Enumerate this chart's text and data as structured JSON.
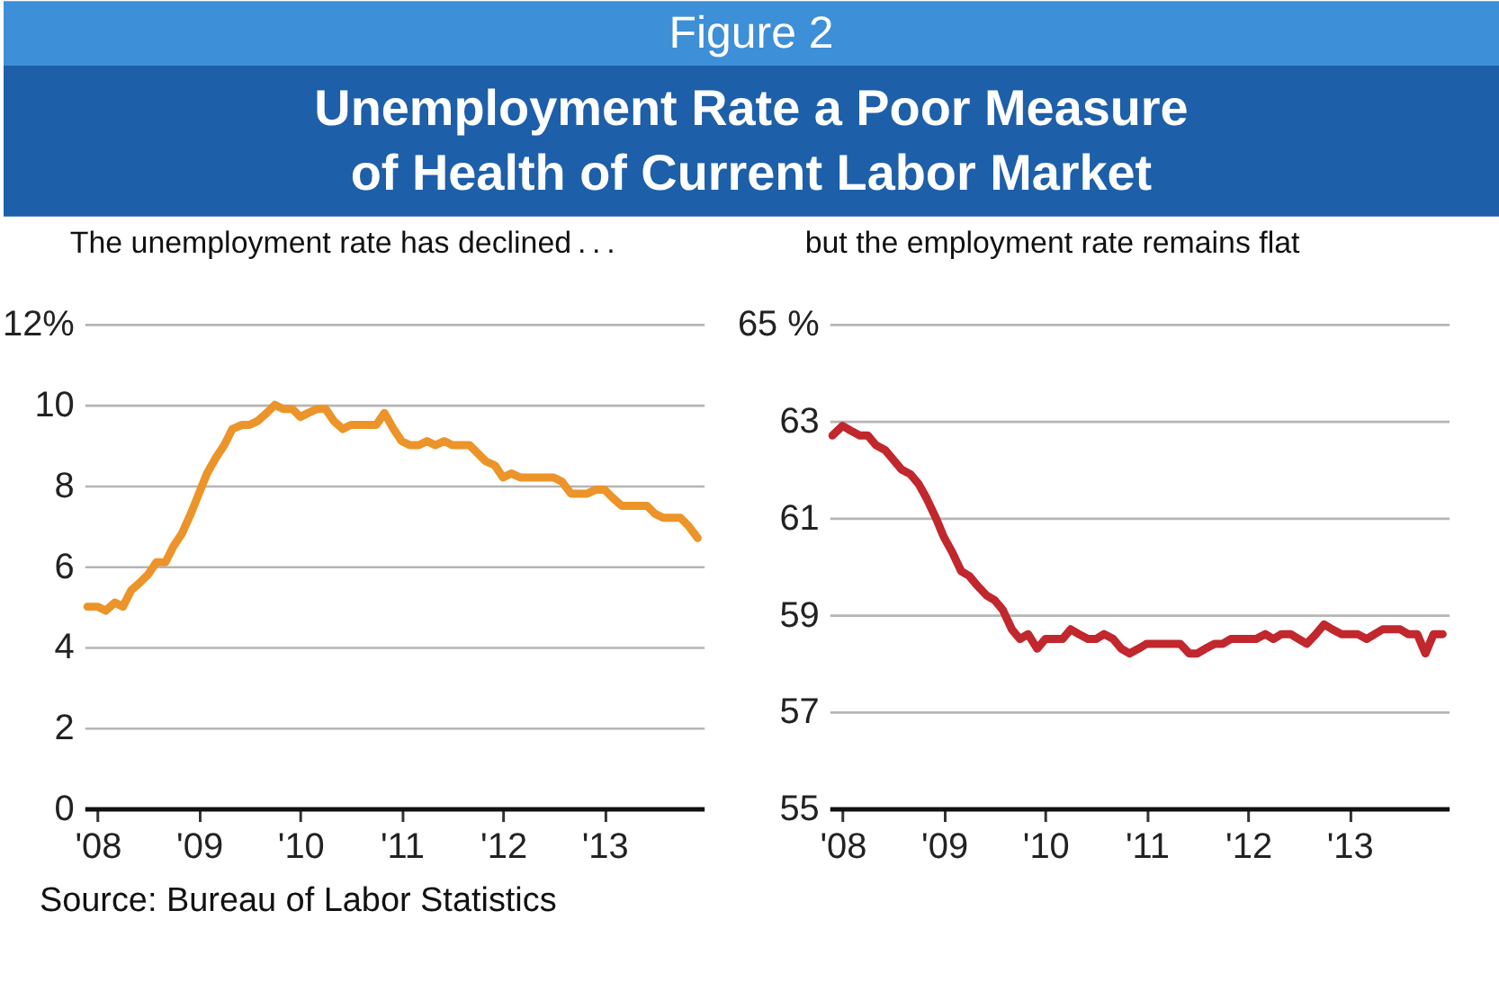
{
  "chart_data": [
    {
      "type": "other",
      "title": "Figure 2",
      "subtitle": "Unemployment Rate a Poor Measure\nof Health of Current Labor Market"
    },
    {
      "type": "line",
      "annotations": [
        "The unemployment rate has declined . . .",
        "Source: Bureau of Labor Statistics"
      ],
      "x": [
        2007.9,
        2008.0,
        2008.08,
        2008.17,
        2008.25,
        2008.33,
        2008.42,
        2008.5,
        2008.58,
        2008.67,
        2008.75,
        2008.83,
        2008.92,
        2009.0,
        2009.08,
        2009.17,
        2009.25,
        2009.33,
        2009.42,
        2009.5,
        2009.58,
        2009.67,
        2009.75,
        2009.83,
        2009.92,
        2010.0,
        2010.08,
        2010.17,
        2010.25,
        2010.33,
        2010.42,
        2010.5,
        2010.58,
        2010.67,
        2010.75,
        2010.83,
        2010.92,
        2011.0,
        2011.08,
        2011.17,
        2011.25,
        2011.33,
        2011.42,
        2011.5,
        2011.58,
        2011.67,
        2011.75,
        2011.83,
        2011.92,
        2012.0,
        2012.08,
        2012.17,
        2012.25,
        2012.33,
        2012.42,
        2012.5,
        2012.58,
        2012.67,
        2012.75,
        2012.83,
        2012.92,
        2013.0,
        2013.08,
        2013.17,
        2013.25,
        2013.33,
        2013.42,
        2013.5,
        2013.58,
        2013.67,
        2013.75,
        2013.83,
        2013.92
      ],
      "series": [
        {
          "color": "#ec9429",
          "values": [
            5.0,
            5.0,
            4.9,
            5.1,
            5.0,
            5.4,
            5.6,
            5.8,
            6.1,
            6.1,
            6.5,
            6.8,
            7.3,
            7.8,
            8.3,
            8.7,
            9.0,
            9.4,
            9.5,
            9.5,
            9.6,
            9.8,
            10.0,
            9.9,
            9.9,
            9.7,
            9.8,
            9.9,
            9.9,
            9.6,
            9.4,
            9.5,
            9.5,
            9.5,
            9.5,
            9.8,
            9.4,
            9.1,
            9.0,
            9.0,
            9.1,
            9.0,
            9.1,
            9.0,
            9.0,
            9.0,
            8.8,
            8.6,
            8.5,
            8.2,
            8.3,
            8.2,
            8.2,
            8.2,
            8.2,
            8.2,
            8.1,
            7.8,
            7.8,
            7.8,
            7.9,
            7.9,
            7.7,
            7.5,
            7.5,
            7.5,
            7.5,
            7.3,
            7.2,
            7.2,
            7.2,
            7.0,
            6.7
          ]
        }
      ],
      "xlim": [
        2007.87,
        2013.98
      ],
      "xticks": [
        {
          "value": 2008,
          "label": "'08"
        },
        {
          "value": 2009,
          "label": "'09"
        },
        {
          "value": 2010,
          "label": "'10"
        },
        {
          "value": 2011,
          "label": "'11"
        },
        {
          "value": 2012,
          "label": "'12"
        },
        {
          "value": 2013,
          "label": "'13"
        }
      ],
      "ylim": [
        0,
        12
      ],
      "yticks": [
        0,
        2,
        4,
        6,
        8,
        10,
        {
          "value": 12,
          "label": "12%"
        }
      ],
      "grid": "y"
    },
    {
      "type": "line",
      "annotations": [
        "but the employment rate remains flat"
      ],
      "x": [
        2007.9,
        2008.0,
        2008.08,
        2008.17,
        2008.25,
        2008.33,
        2008.42,
        2008.5,
        2008.58,
        2008.67,
        2008.75,
        2008.83,
        2008.92,
        2009.0,
        2009.08,
        2009.17,
        2009.25,
        2009.33,
        2009.42,
        2009.5,
        2009.58,
        2009.67,
        2009.75,
        2009.83,
        2009.92,
        2010.0,
        2010.08,
        2010.17,
        2010.25,
        2010.33,
        2010.42,
        2010.5,
        2010.58,
        2010.67,
        2010.75,
        2010.83,
        2010.92,
        2011.0,
        2011.08,
        2011.17,
        2011.25,
        2011.33,
        2011.42,
        2011.5,
        2011.58,
        2011.67,
        2011.75,
        2011.83,
        2011.92,
        2012.0,
        2012.08,
        2012.17,
        2012.25,
        2012.33,
        2012.42,
        2012.5,
        2012.58,
        2012.67,
        2012.75,
        2012.83,
        2012.92,
        2013.0,
        2013.08,
        2013.17,
        2013.25,
        2013.33,
        2013.42,
        2013.5,
        2013.58,
        2013.67,
        2013.75,
        2013.83,
        2013.92
      ],
      "series": [
        {
          "color": "#c1272d",
          "values": [
            62.7,
            62.9,
            62.8,
            62.7,
            62.7,
            62.5,
            62.4,
            62.2,
            62.0,
            61.9,
            61.7,
            61.4,
            61.0,
            60.6,
            60.3,
            59.9,
            59.8,
            59.6,
            59.4,
            59.3,
            59.1,
            58.7,
            58.5,
            58.6,
            58.3,
            58.5,
            58.5,
            58.5,
            58.7,
            58.6,
            58.5,
            58.5,
            58.6,
            58.5,
            58.3,
            58.2,
            58.3,
            58.4,
            58.4,
            58.4,
            58.4,
            58.4,
            58.2,
            58.2,
            58.3,
            58.4,
            58.4,
            58.5,
            58.5,
            58.5,
            58.5,
            58.6,
            58.5,
            58.6,
            58.6,
            58.5,
            58.4,
            58.6,
            58.8,
            58.7,
            58.6,
            58.6,
            58.6,
            58.5,
            58.6,
            58.7,
            58.7,
            58.7,
            58.6,
            58.6,
            58.2,
            58.6,
            58.6
          ]
        }
      ],
      "xlim": [
        2007.87,
        2013.98
      ],
      "xticks": [
        {
          "value": 2008,
          "label": "'08"
        },
        {
          "value": 2009,
          "label": "'09"
        },
        {
          "value": 2010,
          "label": "'10"
        },
        {
          "value": 2011,
          "label": "'11"
        },
        {
          "value": 2012,
          "label": "'12"
        },
        {
          "value": 2013,
          "label": "'13"
        }
      ],
      "ylim": [
        55,
        65
      ],
      "yticks": [
        55,
        57,
        59,
        61,
        63,
        {
          "value": 65,
          "label": "65 %"
        }
      ],
      "grid": "y"
    }
  ]
}
